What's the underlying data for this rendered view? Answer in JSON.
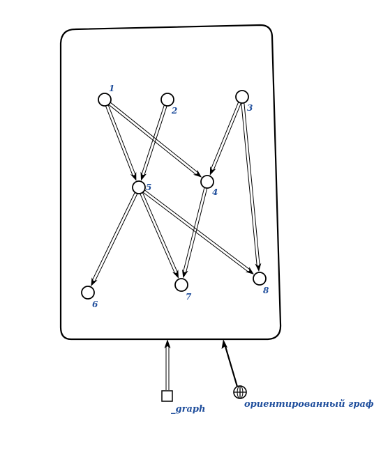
{
  "diagram": {
    "colors": {
      "line": "#000000",
      "label": "#1f4e9c",
      "background": "#ffffff"
    },
    "nodes": [
      {
        "id": "1",
        "label": "1"
      },
      {
        "id": "2",
        "label": "2"
      },
      {
        "id": "3",
        "label": "3"
      },
      {
        "id": "4",
        "label": "4"
      },
      {
        "id": "5",
        "label": "5"
      },
      {
        "id": "6",
        "label": "6"
      },
      {
        "id": "7",
        "label": "7"
      },
      {
        "id": "8",
        "label": "8"
      }
    ],
    "edges": [
      {
        "from": "1",
        "to": "5"
      },
      {
        "from": "1",
        "to": "4"
      },
      {
        "from": "2",
        "to": "5"
      },
      {
        "from": "3",
        "to": "4"
      },
      {
        "from": "3",
        "to": "8"
      },
      {
        "from": "4",
        "to": "7"
      },
      {
        "from": "5",
        "to": "6"
      },
      {
        "from": "5",
        "to": "7"
      },
      {
        "from": "5",
        "to": "8"
      }
    ],
    "graph_var": {
      "label": "_graph",
      "icon": "square-icon"
    },
    "graph_type": {
      "label": "ориентированный граф",
      "icon": "globe-icon"
    }
  }
}
